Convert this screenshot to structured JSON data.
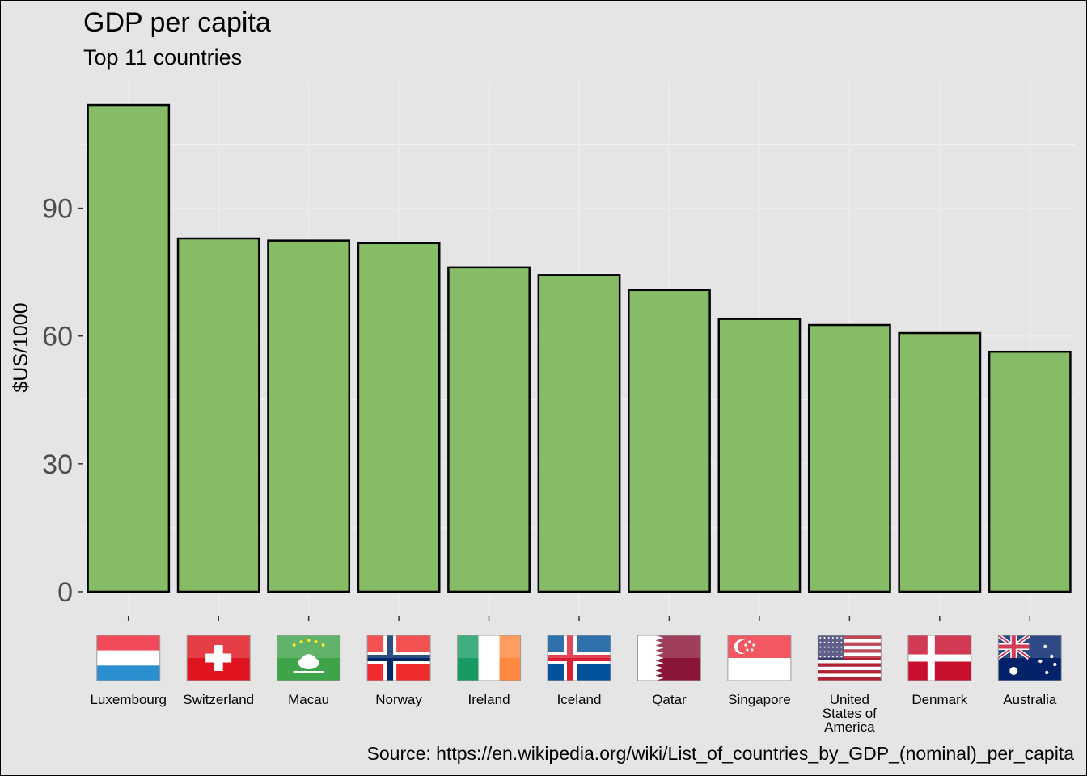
{
  "chart_data": {
    "type": "bar",
    "title": "GDP per capita",
    "subtitle": "Top 11 countries",
    "xlabel": "",
    "ylabel": "$US/1000",
    "caption": "Source: https://en.wikipedia.org/wiki/List_of_countries_by_GDP_(nominal)_per_capita",
    "categories": [
      "Luxembourg",
      "Switzerland",
      "Macau",
      "Norway",
      "Ireland",
      "Iceland",
      "Qatar",
      "Singapore",
      "United States of America",
      "Denmark",
      "Australia"
    ],
    "values": [
      114.2,
      82.9,
      82.4,
      81.8,
      76.1,
      74.3,
      70.8,
      64.0,
      62.6,
      60.7,
      56.3
    ],
    "yticks": [
      0,
      30,
      60,
      90
    ],
    "ylim": [
      -5.7,
      119.9
    ],
    "grid": true,
    "legend": "none",
    "flags": [
      "luxembourg-flag",
      "switzerland-flag",
      "macau-flag",
      "norway-flag",
      "ireland-flag",
      "iceland-flag",
      "qatar-flag",
      "singapore-flag",
      "usa-flag",
      "denmark-flag",
      "australia-flag"
    ],
    "colors": {
      "bar_fill": "#86bc66",
      "bar_stroke": "#000000",
      "panel_bg": "#e5e5e5",
      "grid_major": "#ebebeb",
      "grid_minor": "#f2f2f2",
      "axis_text": "#4d4d4d"
    }
  }
}
